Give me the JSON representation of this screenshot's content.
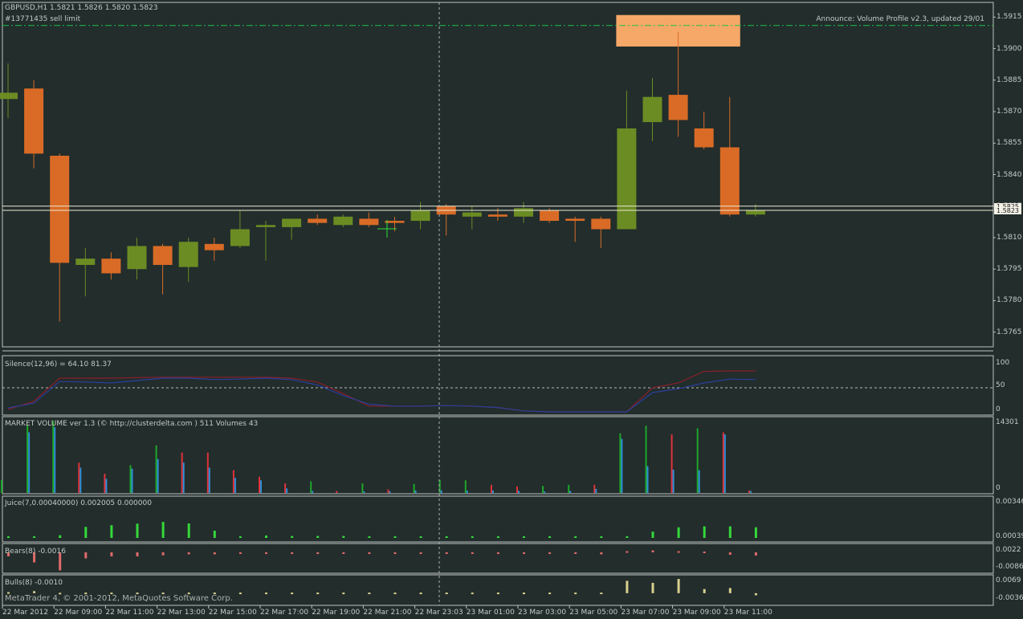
{
  "header": {
    "symbol_line": "GBPUSD,H1  1.5821 1.5826 1.5820 1.5823",
    "order_label": "#13771435 sell limit",
    "announce": "Announce: Volume Profile v2.3, updated 29/01"
  },
  "main_axis": {
    "labels": [
      "1.5915",
      "1.5900",
      "1.5885",
      "1.5870",
      "1.5855",
      "1.5840",
      "1.5825",
      "1.5810",
      "1.5795",
      "1.5780",
      "1.5765"
    ],
    "price_tags": [
      "1.5825",
      "1.5823"
    ]
  },
  "time_axis": [
    "22 Mar 2012",
    "22 Mar 09:00",
    "22 Mar 11:00",
    "22 Mar 13:00",
    "22 Mar 15:00",
    "22 Mar 17:00",
    "22 Mar 19:00",
    "22 Mar 21:00",
    "22 Mar 23:03",
    "23 Mar 01:00",
    "23 Mar 03:00",
    "23 Mar 05:00",
    "23 Mar 07:00",
    "23 Mar 09:00",
    "23 Mar 11:00"
  ],
  "indicators": {
    "silence": {
      "label": "Silence(12,96) =  64.10 81.37",
      "axis": [
        "100",
        "50",
        "0"
      ]
    },
    "market_volume": {
      "label": "MARKET VOLUME  ver 1.3 (© http://clusterdelta.com ) 511  Volumes 43",
      "axis": [
        "14301",
        "0"
      ]
    },
    "juice": {
      "label": "Juice(7,0.00040000) 0.002005 0.000000",
      "axis": [
        "0.00346",
        "0.00039"
      ]
    },
    "bears": {
      "label": "Bears(8) -0.0016",
      "axis": [
        "0.0022",
        "-0.0086"
      ]
    },
    "bulls": {
      "label": "Bulls(8) -0.0010",
      "axis": [
        "0.0069",
        "-0.0036"
      ]
    }
  },
  "footer": {
    "copyright": "MetaTrader 4, © 2001-2012, MetaQuotes Software Corp."
  },
  "colors": {
    "bull": "#6b8c23",
    "bear": "#d96b26",
    "background": "#222d2c",
    "grid_line": "#aeb4ae",
    "order_line": "#1fbf4a",
    "zone": "#f6a868"
  },
  "chart_data": {
    "type": "candlestick",
    "symbol": "GBPUSD",
    "timeframe": "H1",
    "ylim": [
      1.5758,
      1.5922
    ],
    "bars": [
      {
        "o": 1.5876,
        "h": 1.5893,
        "l": 1.5867,
        "c": 1.5879
      },
      {
        "o": 1.5881,
        "h": 1.5885,
        "l": 1.5843,
        "c": 1.585
      },
      {
        "o": 1.5849,
        "h": 1.585,
        "l": 1.577,
        "c": 1.5798
      },
      {
        "o": 1.5797,
        "h": 1.5805,
        "l": 1.5782,
        "c": 1.58
      },
      {
        "o": 1.58,
        "h": 1.5803,
        "l": 1.579,
        "c": 1.5793
      },
      {
        "o": 1.5795,
        "h": 1.581,
        "l": 1.579,
        "c": 1.5806
      },
      {
        "o": 1.5806,
        "h": 1.5807,
        "l": 1.5783,
        "c": 1.5797
      },
      {
        "o": 1.5796,
        "h": 1.581,
        "l": 1.5789,
        "c": 1.5808
      },
      {
        "o": 1.5807,
        "h": 1.581,
        "l": 1.5799,
        "c": 1.5804
      },
      {
        "o": 1.5806,
        "h": 1.5823,
        "l": 1.5805,
        "c": 1.5814
      },
      {
        "o": 1.5815,
        "h": 1.5818,
        "l": 1.5799,
        "c": 1.5816
      },
      {
        "o": 1.5815,
        "h": 1.5819,
        "l": 1.5809,
        "c": 1.5819
      },
      {
        "o": 1.5819,
        "h": 1.5821,
        "l": 1.5816,
        "c": 1.5817
      },
      {
        "o": 1.5816,
        "h": 1.5821,
        "l": 1.5815,
        "c": 1.582
      },
      {
        "o": 1.5819,
        "h": 1.5822,
        "l": 1.5815,
        "c": 1.5816
      },
      {
        "o": 1.5818,
        "h": 1.582,
        "l": 1.5813,
        "c": 1.5817
      },
      {
        "o": 1.5818,
        "h": 1.5827,
        "l": 1.5814,
        "c": 1.5823
      },
      {
        "o": 1.5825,
        "h": 1.5826,
        "l": 1.5811,
        "c": 1.5821
      },
      {
        "o": 1.582,
        "h": 1.5825,
        "l": 1.5814,
        "c": 1.5822
      },
      {
        "o": 1.5821,
        "h": 1.5824,
        "l": 1.5818,
        "c": 1.582
      },
      {
        "o": 1.582,
        "h": 1.5827,
        "l": 1.5817,
        "c": 1.5824
      },
      {
        "o": 1.5823,
        "h": 1.5824,
        "l": 1.5817,
        "c": 1.5818
      },
      {
        "o": 1.5819,
        "h": 1.582,
        "l": 1.5808,
        "c": 1.5818
      },
      {
        "o": 1.5819,
        "h": 1.582,
        "l": 1.5805,
        "c": 1.5814
      },
      {
        "o": 1.5814,
        "h": 1.588,
        "l": 1.5814,
        "c": 1.5862
      },
      {
        "o": 1.5865,
        "h": 1.5886,
        "l": 1.5856,
        "c": 1.5877
      },
      {
        "o": 1.5878,
        "h": 1.5908,
        "l": 1.5858,
        "c": 1.5866
      },
      {
        "o": 1.5862,
        "h": 1.587,
        "l": 1.5852,
        "c": 1.5853
      },
      {
        "o": 1.5853,
        "h": 1.5877,
        "l": 1.582,
        "c": 1.5821
      },
      {
        "o": 1.5821,
        "h": 1.5826,
        "l": 1.582,
        "c": 1.5823
      }
    ],
    "order_line_price": 1.5911,
    "horizontal_lines": [
      1.5825,
      1.5823
    ],
    "zone": {
      "price_top": 1.5916,
      "price_bottom": 1.5901,
      "from_bar": 24,
      "to_bar": 28
    },
    "silence": {
      "ylim": [
        -5,
        115
      ],
      "line1": [
        5,
        22,
        70,
        70,
        70,
        71,
        72,
        72,
        72,
        72,
        72,
        70,
        62,
        38,
        12,
        12,
        12,
        13,
        12,
        9,
        2,
        0,
        0,
        0,
        0,
        50,
        60,
        84,
        85,
        85
      ],
      "line2": [
        8,
        18,
        63,
        62,
        60,
        65,
        70,
        70,
        67,
        68,
        70,
        67,
        56,
        34,
        16,
        12,
        12,
        13,
        12,
        9,
        2,
        0,
        0,
        0,
        0,
        40,
        48,
        60,
        68,
        67
      ]
    },
    "market_volume": {
      "ylim": [
        0,
        14301
      ],
      "green": [
        2600,
        13500,
        14301,
        0,
        0,
        5500,
        9400,
        0,
        0,
        0,
        0,
        0,
        2300,
        0,
        1900,
        0,
        1800,
        2600,
        2500,
        0,
        0,
        1400,
        1600,
        0,
        11800,
        13300,
        0,
        12800,
        0,
        0
      ],
      "red": [
        0,
        0,
        0,
        6000,
        3800,
        0,
        0,
        8000,
        8000,
        4500,
        3200,
        1900,
        0,
        400,
        0,
        700,
        0,
        0,
        0,
        1600,
        1300,
        0,
        0,
        1600,
        0,
        0,
        11600,
        0,
        12000,
        500
      ],
      "blue": [
        0,
        12000,
        13000,
        5000,
        2800,
        4800,
        6700,
        6000,
        5000,
        3000,
        2500,
        900,
        400,
        0,
        300,
        300,
        500,
        500,
        450,
        500,
        400,
        300,
        400,
        800,
        10700,
        5300,
        4600,
        4500,
        11600,
        400
      ]
    },
    "juice": {
      "ylim": [
        0,
        0.004
      ],
      "values": [
        0.00012,
        0.00012,
        0.00028,
        0.00115,
        0.00132,
        0.00148,
        0.00166,
        0.0015,
        0.00075,
        0.00012,
        0.00025,
        0.0002,
        0.0002,
        0.0002,
        5e-05,
        5e-05,
        5e-05,
        5e-05,
        5e-05,
        5e-05,
        5e-05,
        5e-05,
        5e-05,
        5e-05,
        0.00012,
        0.00065,
        0.0011,
        0.0012,
        0.0012,
        0.0011
      ]
    },
    "bears": {
      "ylim": [
        -0.01,
        0.004
      ],
      "values": [
        -0.002,
        -0.005,
        -0.009,
        -0.003,
        -0.002,
        -0.002,
        -0.0015,
        -0.001,
        -0.001,
        -0.0007,
        -0.0005,
        -0.0005,
        -0.0003,
        -0.0003,
        -0.0005,
        -0.0003,
        -0.0005,
        -0.0008,
        -0.0005,
        -0.0005,
        -0.0005,
        -0.0005,
        -0.0007,
        -0.001,
        0.0006,
        0.001,
        0.0006,
        0.0004,
        -0.0012,
        -0.0016
      ]
    },
    "bulls": {
      "ylim": [
        -0.0055,
        0.0085
      ],
      "values": [
        0.0005,
        0.001,
        0.0002,
        0.0003,
        0.0003,
        0.0003,
        0.0003,
        0.0003,
        0.0003,
        0.0003,
        0.0003,
        0.0003,
        0.0003,
        0.0003,
        0.0003,
        0.0003,
        0.0003,
        0.0003,
        0.0003,
        0.0003,
        0.0003,
        0.0003,
        0.0003,
        0.0003,
        0.006,
        0.005,
        0.0069,
        0.002,
        0.0025,
        -0.001
      ]
    }
  }
}
